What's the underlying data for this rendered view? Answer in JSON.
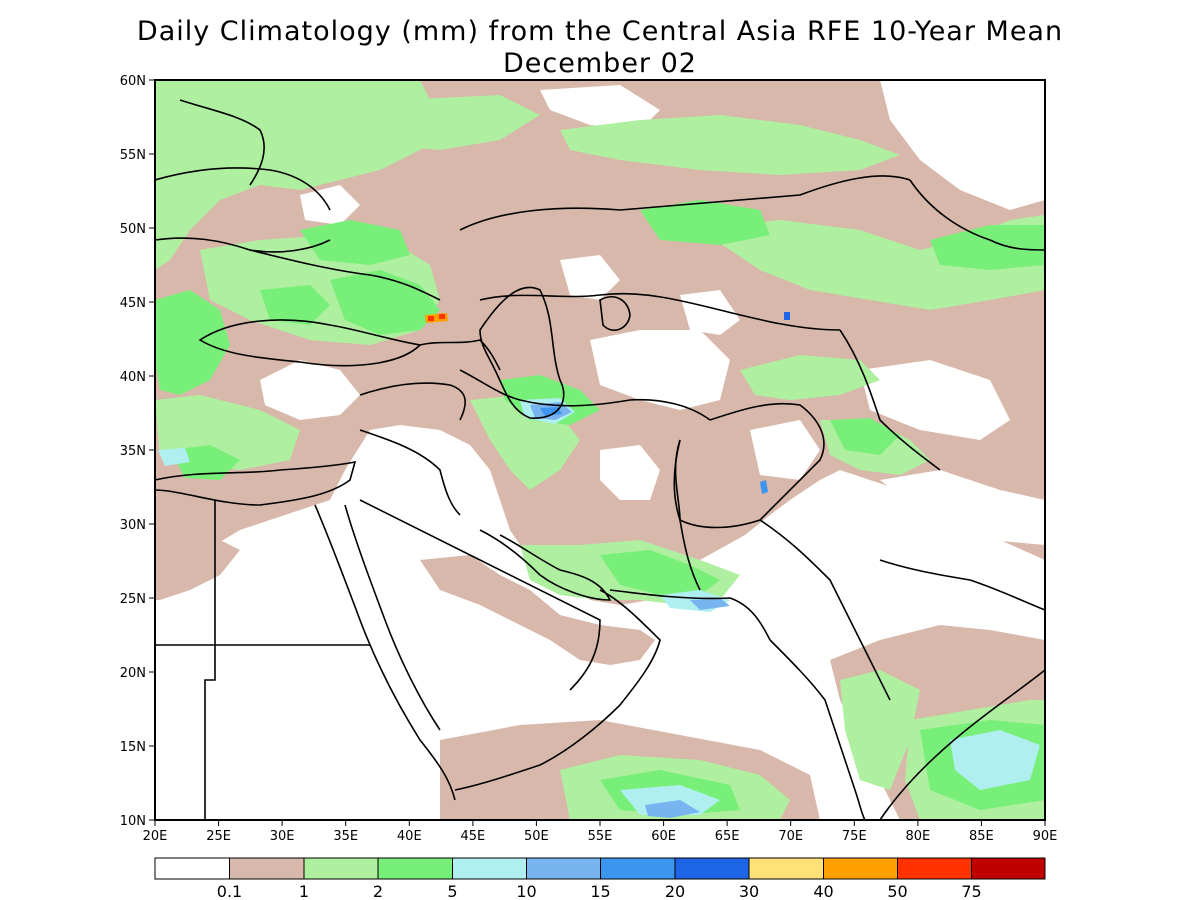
{
  "title": {
    "line1": "Daily Climatology (mm) from the Central Asia RFE 10-Year Mean",
    "line2": "December 02"
  },
  "axes": {
    "lat_labels": [
      "60N",
      "55N",
      "50N",
      "45N",
      "40N",
      "35N",
      "30N",
      "25N",
      "20N",
      "15N",
      "10N"
    ],
    "lon_labels": [
      "20E",
      "25E",
      "30E",
      "35E",
      "40E",
      "45E",
      "50E",
      "55E",
      "60E",
      "65E",
      "70E",
      "75E",
      "80E",
      "85E",
      "90E"
    ],
    "lat_range": [
      10,
      60
    ],
    "lon_range": [
      20,
      90
    ]
  },
  "legend": {
    "colors": [
      "#ffffff",
      "#d8b8aa",
      "#afefa0",
      "#78ef78",
      "#afefef",
      "#78b4ef",
      "#3c96ef",
      "#1e64e6",
      "#ffe178",
      "#ffa000",
      "#ff3200",
      "#c00000"
    ],
    "labels": [
      "0.1",
      "1",
      "2",
      "5",
      "10",
      "15",
      "20",
      "30",
      "40",
      "50",
      "75"
    ]
  },
  "map_colors": {
    "white": "#ffffff",
    "brown": "#d8b8aa",
    "light_green": "#afefa0",
    "green": "#78ef78",
    "cyan": "#afefef",
    "blue": "#78b4ef",
    "mid_blue": "#3c96ef",
    "dark_blue": "#1e64e6",
    "orange": "#ffa000",
    "red": "#ff3200"
  }
}
